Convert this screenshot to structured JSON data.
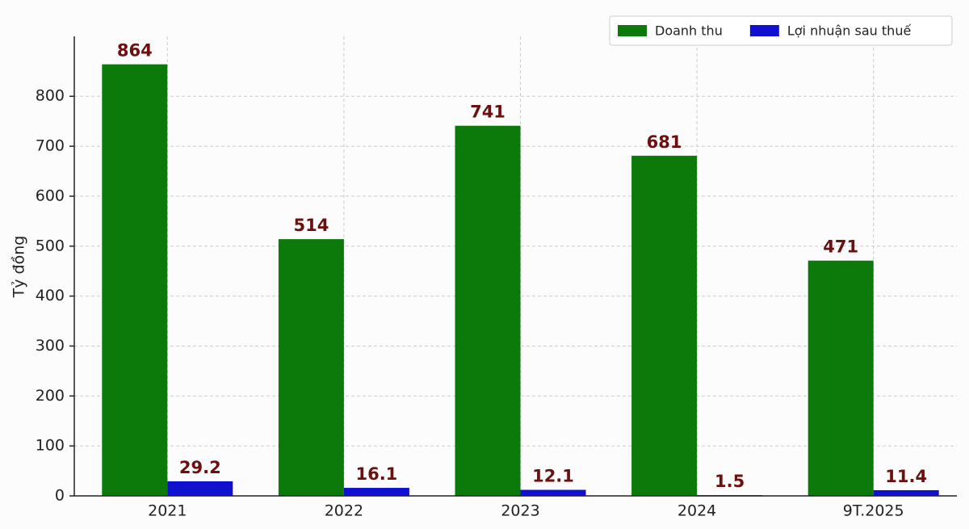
{
  "chart_data": {
    "type": "bar",
    "y_label": "Tỷ đồng",
    "categories": [
      "2021",
      "2022",
      "2023",
      "2024",
      "9T.2025"
    ],
    "series": [
      {
        "name": "Doanh thu",
        "color": "#0b7a0b",
        "values": [
          864,
          514,
          741,
          681,
          471
        ]
      },
      {
        "name": "Lợi nhuận sau thuế",
        "color": "#1010d0",
        "values": [
          29.2,
          16.1,
          12.1,
          1.5,
          11.4
        ]
      }
    ],
    "ylim": [
      0,
      920
    ],
    "yticks": [
      0,
      100,
      200,
      300,
      400,
      500,
      600,
      700,
      800
    ],
    "grid": true,
    "legend": "upper right",
    "data_labels": true,
    "label_color": "#6b0f0f"
  }
}
